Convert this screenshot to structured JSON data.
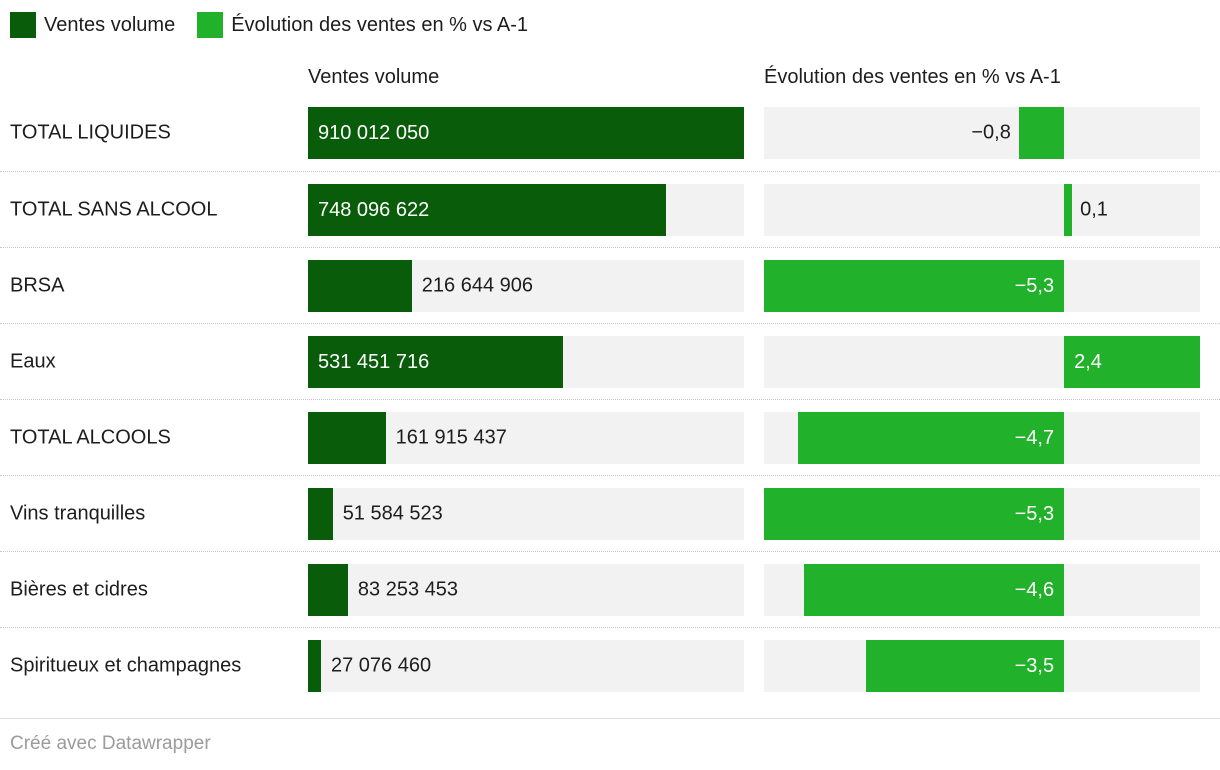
{
  "legend": {
    "items": [
      {
        "label": "Ventes volume",
        "color": "#095c0a"
      },
      {
        "label": "Évolution des ventes en % vs A-1",
        "color": "#21b12a"
      }
    ]
  },
  "headers": {
    "volume": "Ventes volume",
    "evolution": "Évolution des ventes en % vs A-1"
  },
  "footer": {
    "credit": "Créé avec Datawrapper"
  },
  "colors": {
    "dark_green": "#095c0a",
    "light_green": "#21b12a",
    "track_gray": "#f2f2f2",
    "text": "#1d1d1d",
    "label_inside": "#ffffff"
  },
  "chart_data": {
    "type": "bar",
    "layout": "split-bars-horizontal",
    "categories": [
      "TOTAL LIQUIDES",
      "TOTAL SANS ALCOOL",
      "BRSA",
      "Eaux",
      "TOTAL ALCOOLS",
      "Vins tranquilles",
      "Bières et cidres",
      "Spiritueux et champagnes"
    ],
    "series": [
      {
        "name": "Ventes volume",
        "values": [
          910012050,
          748096622,
          216644906,
          531451716,
          161915437,
          51584523,
          83253453,
          27076460
        ],
        "labels": [
          "910 012 050",
          "748 096 622",
          "216 644 906",
          "531 451 716",
          "161 915 437",
          "51 584 523",
          "83 253 453",
          "27 076 460"
        ],
        "axis_min": 0,
        "axis_max": 910012050,
        "bar_color": "#095c0a"
      },
      {
        "name": "Évolution des ventes en % vs A-1",
        "values": [
          -0.8,
          0.1,
          -5.3,
          2.4,
          -4.7,
          -5.3,
          -4.6,
          -3.5
        ],
        "labels": [
          "−0,8",
          "0,1",
          "−5,3",
          "2,4",
          "−4,7",
          "−5,3",
          "−4,6",
          "−3,5"
        ],
        "axis_min": -5.3,
        "axis_max": 2.4,
        "bar_color": "#21b12a"
      }
    ],
    "grid": false,
    "legend_position": "top",
    "track_color": "#f2f2f2"
  }
}
